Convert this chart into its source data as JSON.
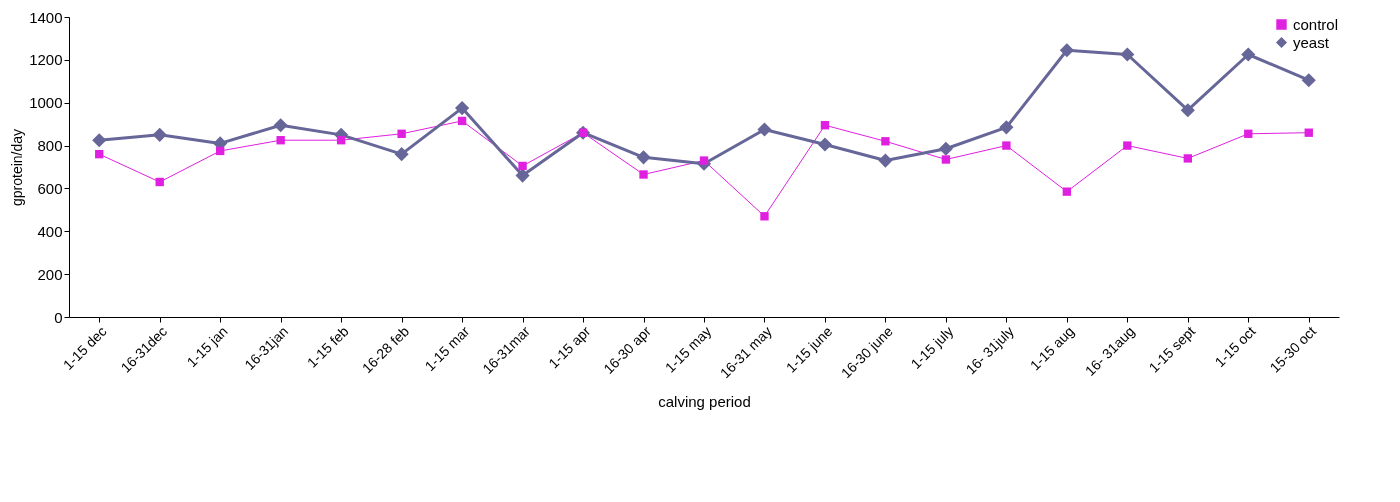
{
  "chart_data": {
    "type": "line",
    "xlabel": "calving period",
    "ylabel": "gprotein/day",
    "categories": [
      "1-15 dec",
      "16-31dec",
      "1-15 jan",
      "16-31jan",
      "1-15 feb",
      "16-28 feb",
      "1-15 mar",
      "16-31mar",
      "1-15 apr",
      "16-30 apr",
      "1-15 may",
      "16-31 may",
      "1-15 june",
      "16-30 june",
      "1-15 july",
      "16- 31july",
      "1-15 aug",
      "16- 31aug",
      "1-15 sept",
      "1-15 oct",
      "15-30 oct"
    ],
    "series": [
      {
        "name": "control",
        "color": "#e020e0",
        "marker": "square",
        "values": [
          760,
          630,
          775,
          825,
          825,
          855,
          915,
          705,
          860,
          665,
          730,
          470,
          895,
          820,
          735,
          800,
          585,
          800,
          740,
          855,
          860
        ]
      },
      {
        "name": "yeast",
        "color": "#666699",
        "marker": "diamond",
        "values": [
          825,
          850,
          810,
          895,
          850,
          760,
          975,
          660,
          860,
          745,
          715,
          875,
          805,
          730,
          785,
          885,
          1245,
          1225,
          965,
          1225,
          1105
        ]
      }
    ],
    "ylim": [
      0,
      1400
    ],
    "yticks": [
      0,
      200,
      400,
      600,
      800,
      1000,
      1200,
      1400
    ],
    "grid": false,
    "legend": "top right"
  }
}
